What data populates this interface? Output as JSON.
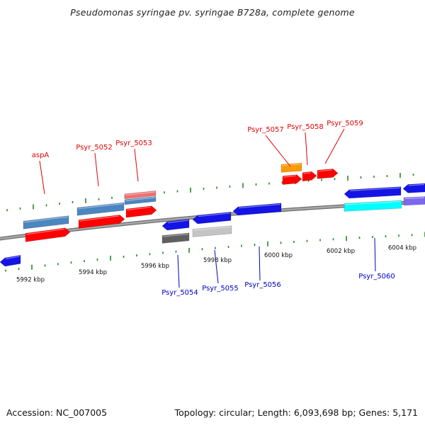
{
  "title": "Pseudomonas syringae pv. syringae B728a, complete genome",
  "footer": {
    "accession": "Accession: NC_007005",
    "summary": "Topology: circular; Length: 6,093,698 bp; Genes: 5,171"
  },
  "colors": {
    "backbone": "#8a8a8a",
    "tick": "#1e8a1e",
    "forward_label": "#e00000",
    "reverse_label": "#0000c0",
    "red_gene": "#ff0000",
    "steel_blue_gene": "#4a86c0",
    "pink_gene": "#f07070",
    "orange_gene": "#ff9900",
    "blue_gene": "#1414e6",
    "dark_gray_gene": "#606060",
    "light_gray_gene": "#c4c4c4",
    "cyan_gene": "#00ffff",
    "slate_gene": "#7b68ee"
  },
  "scale": {
    "unit": "kbp",
    "labels": [
      "5992 kbp",
      "5994 kbp",
      "5996 kbp",
      "5998 kbp",
      "6000 kbp",
      "6002 kbp",
      "6004 kbp"
    ]
  },
  "forward_genes": [
    {
      "name": "aspA",
      "color": "red_gene"
    },
    {
      "name": "Psyr_5052",
      "color": "red_gene"
    },
    {
      "name": "Psyr_5053",
      "color": "red_gene"
    },
    {
      "name": "Psyr_5057",
      "color": "red_gene"
    },
    {
      "name": "Psyr_5058",
      "color": "red_gene"
    },
    {
      "name": "Psyr_5059",
      "color": "red_gene"
    }
  ],
  "reverse_genes": [
    {
      "name": "Psyr_5054",
      "color": "blue_gene"
    },
    {
      "name": "Psyr_5055",
      "color": "blue_gene"
    },
    {
      "name": "Psyr_5056",
      "color": "blue_gene"
    },
    {
      "name": "Psyr_5060",
      "color": "blue_gene"
    }
  ]
}
